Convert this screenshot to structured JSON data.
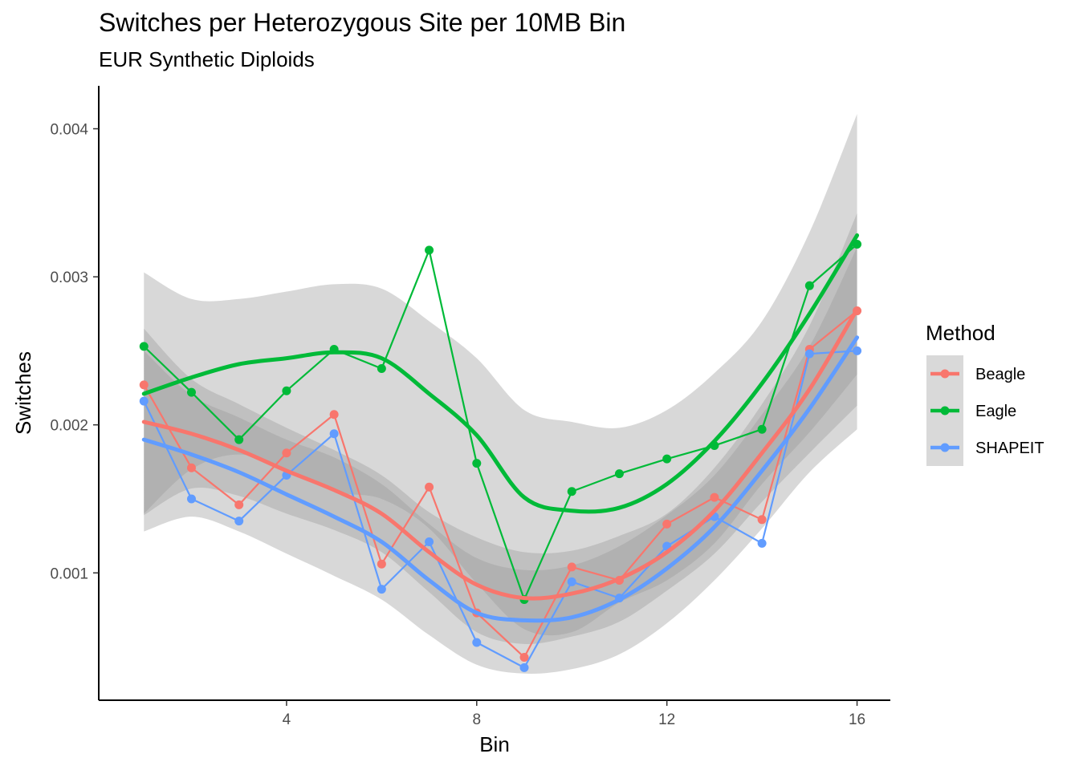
{
  "chart_data": {
    "type": "line",
    "title": "Switches per Heterozygous Site per 10MB Bin",
    "subtitle": "EUR Synthetic Diploids",
    "xlabel": "Bin",
    "ylabel": "Switches",
    "xlim": [
      0.05,
      16.7
    ],
    "ylim": [
      0.00014,
      0.00429
    ],
    "x_ticks": [
      4,
      8,
      12,
      16
    ],
    "y_ticks": [
      0.001,
      0.002,
      0.003,
      0.004
    ],
    "y_tick_labels": [
      "0.001",
      "0.002",
      "0.003",
      "0.004"
    ],
    "grid": false,
    "legend": {
      "title": "Method",
      "position": "right"
    },
    "x": [
      1,
      2,
      3,
      4,
      5,
      6,
      7,
      8,
      9,
      10,
      11,
      12,
      13,
      14,
      15,
      16
    ],
    "series": [
      {
        "name": "Beagle",
        "color": "#F8766D",
        "values": [
          0.00227,
          0.00171,
          0.00146,
          0.00181,
          0.00207,
          0.00106,
          0.00158,
          0.00073,
          0.00043,
          0.00104,
          0.00095,
          0.00133,
          0.00151,
          0.00136,
          0.00251,
          0.00277
        ],
        "smooth_x": [
          1,
          2,
          3,
          4,
          5,
          6,
          7,
          8,
          9,
          10,
          11,
          12,
          13,
          14,
          15,
          16
        ],
        "smooth_y": [
          0.00202,
          0.00194,
          0.00183,
          0.00169,
          0.00156,
          0.0014,
          0.00114,
          0.00092,
          0.00083,
          0.00086,
          0.00096,
          0.00114,
          0.00142,
          0.00181,
          0.00224,
          0.00278
        ],
        "band_lower": [
          0.00139,
          0.00157,
          0.00152,
          0.0014,
          0.00129,
          0.00114,
          0.00087,
          0.0006,
          0.00052,
          0.00057,
          0.00067,
          0.00088,
          0.00113,
          0.00148,
          0.00181,
          0.00213
        ],
        "band_upper": [
          0.00265,
          0.00231,
          0.00214,
          0.00198,
          0.00183,
          0.00166,
          0.00141,
          0.00124,
          0.00114,
          0.00115,
          0.00125,
          0.0014,
          0.00171,
          0.00214,
          0.00267,
          0.00343
        ]
      },
      {
        "name": "Eagle",
        "color": "#00BA38",
        "values": [
          0.00253,
          0.00222,
          0.0019,
          0.00223,
          0.00251,
          0.00238,
          0.00318,
          0.00174,
          0.00082,
          0.00155,
          0.00167,
          0.00177,
          0.00186,
          0.00197,
          0.00294,
          0.00322
        ],
        "smooth_x": [
          1,
          2,
          3,
          4,
          5,
          6,
          7,
          8,
          9,
          10,
          11,
          12,
          13,
          14,
          15,
          16
        ],
        "smooth_y": [
          0.00221,
          0.00232,
          0.00241,
          0.00245,
          0.00249,
          0.00245,
          0.00221,
          0.00193,
          0.00151,
          0.00142,
          0.00144,
          0.0016,
          0.00189,
          0.00228,
          0.00275,
          0.00328
        ],
        "band_lower": [
          0.0014,
          0.0017,
          0.0018,
          0.0017,
          0.00155,
          0.0015,
          0.0013,
          0.00093,
          0.00062,
          0.0006,
          0.0008,
          0.00095,
          0.0012,
          0.0016,
          0.00195,
          0.00234
        ],
        "band_upper": [
          0.00303,
          0.00285,
          0.00285,
          0.0029,
          0.00295,
          0.00292,
          0.0027,
          0.00245,
          0.0021,
          0.00202,
          0.00198,
          0.0021,
          0.00235,
          0.0027,
          0.0033,
          0.0041
        ]
      },
      {
        "name": "SHAPEIT",
        "color": "#619CFF",
        "values": [
          0.00216,
          0.0015,
          0.00135,
          0.00166,
          0.00194,
          0.00089,
          0.00121,
          0.00053,
          0.00036,
          0.00094,
          0.00083,
          0.00118,
          0.00138,
          0.0012,
          0.00248,
          0.0025
        ],
        "smooth_x": [
          1,
          2,
          3,
          4,
          5,
          6,
          7,
          8,
          9,
          10,
          11,
          12,
          13,
          14,
          15,
          16
        ],
        "smooth_y": [
          0.0019,
          0.0018,
          0.00168,
          0.00153,
          0.00138,
          0.00121,
          0.00095,
          0.00073,
          0.00068,
          0.0007,
          0.00082,
          0.00103,
          0.00131,
          0.00169,
          0.00211,
          0.00259
        ],
        "band_lower": [
          0.00128,
          0.00138,
          0.00128,
          0.00113,
          0.00098,
          0.00082,
          0.00058,
          0.00038,
          0.00032,
          0.00035,
          0.00045,
          0.00066,
          0.00095,
          0.0013,
          0.00168,
          0.00197
        ],
        "band_upper": [
          0.0025,
          0.0022,
          0.00205,
          0.0019,
          0.00178,
          0.0016,
          0.00133,
          0.0011,
          0.00102,
          0.00105,
          0.00118,
          0.00139,
          0.00166,
          0.00207,
          0.00253,
          0.0032
        ]
      }
    ]
  }
}
